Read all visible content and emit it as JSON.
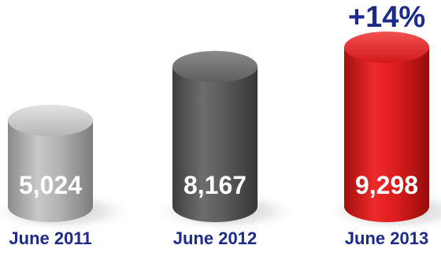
{
  "chart_data": {
    "type": "bar",
    "categories": [
      "June 2011",
      "June 2012",
      "June 2013"
    ],
    "values": [
      5024,
      8167,
      9298
    ],
    "value_labels": [
      "5,024",
      "8,167",
      "9,298"
    ],
    "annotation": "+14%",
    "style": "3d-cylinder",
    "colors": [
      "#a9a9a9",
      "#585858",
      "#d91a1a"
    ],
    "label_color": "#1c2a8a",
    "grid": false,
    "legend": "none"
  }
}
